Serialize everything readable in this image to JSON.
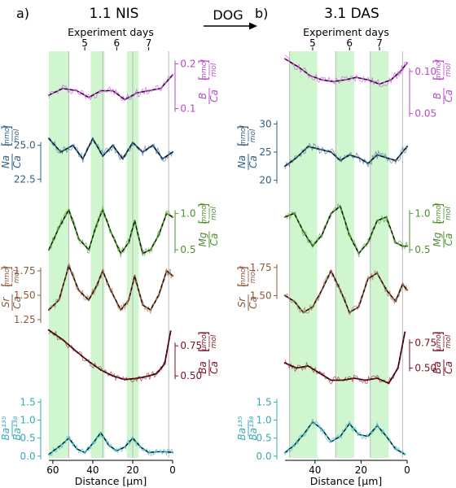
{
  "figure": {
    "arrow_label": "DOG",
    "colors": {
      "B": "#b54bc4",
      "Na": "#2f5f86",
      "Mg": "#4e8f32",
      "Sr": "#8b5a3c",
      "Ba": "#7a1020",
      "Ba135": "#3aa8b8",
      "band": "#c8f5c8",
      "dayline": "#bbbbbb"
    }
  },
  "chart_data": [
    {
      "type": "line",
      "panel_label": "a)",
      "title": "1.1 NIS",
      "top_axis_label": "Experiment days",
      "day_labels": [
        {
          "label": "5",
          "x": 44
        },
        {
          "label": "6",
          "x": 28
        },
        {
          "label": "7",
          "x": 12
        }
      ],
      "day_boundaries_x": [
        52,
        35,
        20,
        2
      ],
      "shaded_x_ranges": [
        [
          62,
          52
        ],
        [
          41,
          34
        ],
        [
          23,
          17
        ]
      ],
      "xlabel": "Distance [μm]",
      "xlim": [
        62,
        0
      ],
      "xticks": [
        60,
        40,
        20,
        0
      ],
      "series": [
        {
          "element": "B",
          "num": "B",
          "den": "Ca",
          "unit_num": "mmol",
          "unit_den": "mol",
          "axis_side": "right",
          "ylim": [
            0.07,
            0.23
          ],
          "yticks": [
            "0.1",
            "0.2"
          ],
          "x": [
            62,
            55,
            48,
            42,
            36,
            30,
            24,
            18,
            12,
            6,
            0
          ],
          "y": [
            0.13,
            0.145,
            0.14,
            0.125,
            0.14,
            0.14,
            0.12,
            0.135,
            0.14,
            0.145,
            0.175
          ]
        },
        {
          "element": "Na",
          "num": "Na",
          "den": "Ca",
          "unit_num": "mmol",
          "unit_den": "mol",
          "axis_side": "left",
          "ylim": [
            21.8,
            27.2
          ],
          "yticks": [
            "22.5",
            "25.0"
          ],
          "x": [
            62,
            56,
            50,
            45,
            40,
            35,
            30,
            25,
            20,
            15,
            10,
            5,
            0
          ],
          "y": [
            25.5,
            24.5,
            25.0,
            24.0,
            25.5,
            24.2,
            25.0,
            24.0,
            25.2,
            24.5,
            25.0,
            24.0,
            24.5
          ]
        },
        {
          "element": "Mg",
          "num": "Mg",
          "den": "Ca",
          "unit_num": "mmol",
          "unit_den": "mol",
          "axis_side": "right",
          "ylim": [
            0.3,
            1.25
          ],
          "yticks": [
            "0.5",
            "1.0"
          ],
          "x": [
            62,
            57,
            52,
            47,
            42,
            38,
            35,
            31,
            26,
            22,
            19,
            15,
            11,
            7,
            3,
            0
          ],
          "y": [
            0.5,
            0.8,
            1.05,
            0.65,
            0.5,
            0.85,
            1.05,
            0.75,
            0.45,
            0.6,
            0.9,
            0.45,
            0.5,
            0.7,
            1.0,
            0.95
          ]
        },
        {
          "element": "Sr",
          "num": "Sr",
          "den": "Ca",
          "unit_num": "mmol",
          "unit_den": "mol",
          "axis_side": "left",
          "ylim": [
            1.15,
            1.9
          ],
          "yticks": [
            "1.25",
            "1.50",
            "1.75"
          ],
          "x": [
            62,
            57,
            52,
            47,
            42,
            38,
            35,
            31,
            26,
            22,
            19,
            15,
            11,
            7,
            3,
            0
          ],
          "y": [
            1.35,
            1.45,
            1.8,
            1.55,
            1.45,
            1.6,
            1.75,
            1.55,
            1.35,
            1.45,
            1.7,
            1.4,
            1.35,
            1.5,
            1.75,
            1.7
          ]
        },
        {
          "element": "Ba",
          "num": "Ba",
          "den": "Ca",
          "unit_num": "μmol",
          "unit_den": "mol",
          "axis_side": "right",
          "ylim": [
            0.38,
            0.92
          ],
          "yticks": [
            "0.50",
            "0.75"
          ],
          "x": [
            62,
            55,
            48,
            42,
            36,
            30,
            24,
            18,
            12,
            8,
            4,
            1
          ],
          "y": [
            0.88,
            0.8,
            0.7,
            0.62,
            0.55,
            0.5,
            0.47,
            0.48,
            0.5,
            0.52,
            0.6,
            0.87
          ]
        },
        {
          "element": "Ba135",
          "num": "Ba¹³⁵",
          "den": "Ba¹³⁸",
          "unit_num": "",
          "unit_den": "",
          "axis_side": "left",
          "ylim": [
            -0.05,
            1.6
          ],
          "yticks": [
            "0.0",
            "0.5",
            "1.0",
            "1.5"
          ],
          "x": [
            62,
            56,
            52,
            48,
            44,
            40,
            36,
            32,
            28,
            24,
            20,
            16,
            12,
            8,
            4,
            0
          ],
          "y": [
            0.05,
            0.3,
            0.5,
            0.2,
            0.1,
            0.35,
            0.65,
            0.3,
            0.15,
            0.25,
            0.5,
            0.25,
            0.1,
            0.12,
            0.12,
            0.1
          ]
        }
      ]
    },
    {
      "type": "line",
      "panel_label": "b)",
      "title": "3.1 DAS",
      "top_axis_label": "Experiment days",
      "day_labels": [
        {
          "label": "5",
          "x": 41
        },
        {
          "label": "6",
          "x": 25
        },
        {
          "label": "7",
          "x": 12
        }
      ],
      "day_boundaries_x": [
        51,
        31,
        16,
        2
      ],
      "shaded_x_ranges": [
        [
          51,
          39
        ],
        [
          31,
          23
        ],
        [
          16,
          8
        ]
      ],
      "xlabel": "Distance [μm]",
      "xlim": [
        53,
        0
      ],
      "xticks": [
        40,
        20,
        0
      ],
      "series": [
        {
          "element": "B",
          "num": "B",
          "den": "Ca",
          "unit_num": "mmol",
          "unit_den": "mol",
          "axis_side": "right",
          "ylim": [
            0.04,
            0.125
          ],
          "yticks": [
            "0.05",
            "0.10"
          ],
          "x": [
            53,
            47,
            42,
            37,
            32,
            27,
            22,
            17,
            12,
            7,
            3,
            0
          ],
          "y": [
            0.115,
            0.105,
            0.095,
            0.09,
            0.088,
            0.09,
            0.093,
            0.09,
            0.085,
            0.09,
            0.1,
            0.11
          ]
        },
        {
          "element": "Na",
          "num": "Na",
          "den": "Ca",
          "unit_num": "mmol",
          "unit_den": "mol",
          "axis_side": "left",
          "ylim": [
            18.5,
            31.5
          ],
          "yticks": [
            "20",
            "25",
            "30"
          ],
          "x": [
            53,
            48,
            43,
            38,
            33,
            29,
            25,
            21,
            17,
            13,
            9,
            5,
            0
          ],
          "y": [
            22.5,
            24.0,
            26.0,
            25.5,
            25.0,
            23.5,
            24.5,
            24.0,
            23.0,
            24.5,
            24.0,
            23.5,
            26.0
          ]
        },
        {
          "element": "Mg",
          "num": "Mg",
          "den": "Ca",
          "unit_num": "mmol",
          "unit_den": "mol",
          "axis_side": "right",
          "ylim": [
            0.3,
            1.25
          ],
          "yticks": [
            "0.5",
            "1.0"
          ],
          "x": [
            53,
            49,
            45,
            41,
            37,
            33,
            29,
            25,
            21,
            17,
            13,
            9,
            5,
            2,
            0
          ],
          "y": [
            0.95,
            1.0,
            0.75,
            0.55,
            0.7,
            1.0,
            1.1,
            0.7,
            0.45,
            0.6,
            0.9,
            0.95,
            0.6,
            0.55,
            0.55
          ]
        },
        {
          "element": "Sr",
          "num": "Sr",
          "den": "Ca",
          "unit_num": "mmol",
          "unit_den": "mol",
          "axis_side": "left",
          "ylim": [
            1.2,
            1.85
          ],
          "yticks": [
            "1.50",
            "1.75"
          ],
          "x": [
            53,
            49,
            45,
            41,
            37,
            33,
            29,
            25,
            21,
            17,
            13,
            9,
            5,
            2,
            0
          ],
          "y": [
            1.5,
            1.45,
            1.35,
            1.4,
            1.55,
            1.72,
            1.55,
            1.35,
            1.4,
            1.65,
            1.7,
            1.55,
            1.45,
            1.6,
            1.55
          ]
        },
        {
          "element": "Ba",
          "num": "Ba",
          "den": "Ca",
          "unit_num": "μmol",
          "unit_den": "mol",
          "axis_side": "right",
          "ylim": [
            0.28,
            0.92
          ],
          "yticks": [
            "0.50",
            "0.75"
          ],
          "x": [
            53,
            48,
            43,
            38,
            33,
            28,
            23,
            18,
            13,
            8,
            4,
            1
          ],
          "y": [
            0.55,
            0.5,
            0.52,
            0.45,
            0.38,
            0.38,
            0.4,
            0.38,
            0.4,
            0.35,
            0.5,
            0.85
          ]
        },
        {
          "element": "Ba135",
          "num": "Ba¹³⁵",
          "den": "Ba¹³⁸",
          "unit_num": "",
          "unit_den": "",
          "axis_side": "left",
          "ylim": [
            -0.05,
            1.6
          ],
          "yticks": [
            "0.0",
            "0.5",
            "1.0",
            "1.5"
          ],
          "x": [
            53,
            49,
            45,
            41,
            37,
            33,
            29,
            25,
            21,
            17,
            13,
            9,
            5,
            1
          ],
          "y": [
            0.1,
            0.3,
            0.6,
            0.95,
            0.75,
            0.4,
            0.55,
            0.9,
            0.6,
            0.55,
            0.85,
            0.55,
            0.2,
            0.05
          ]
        }
      ]
    }
  ]
}
